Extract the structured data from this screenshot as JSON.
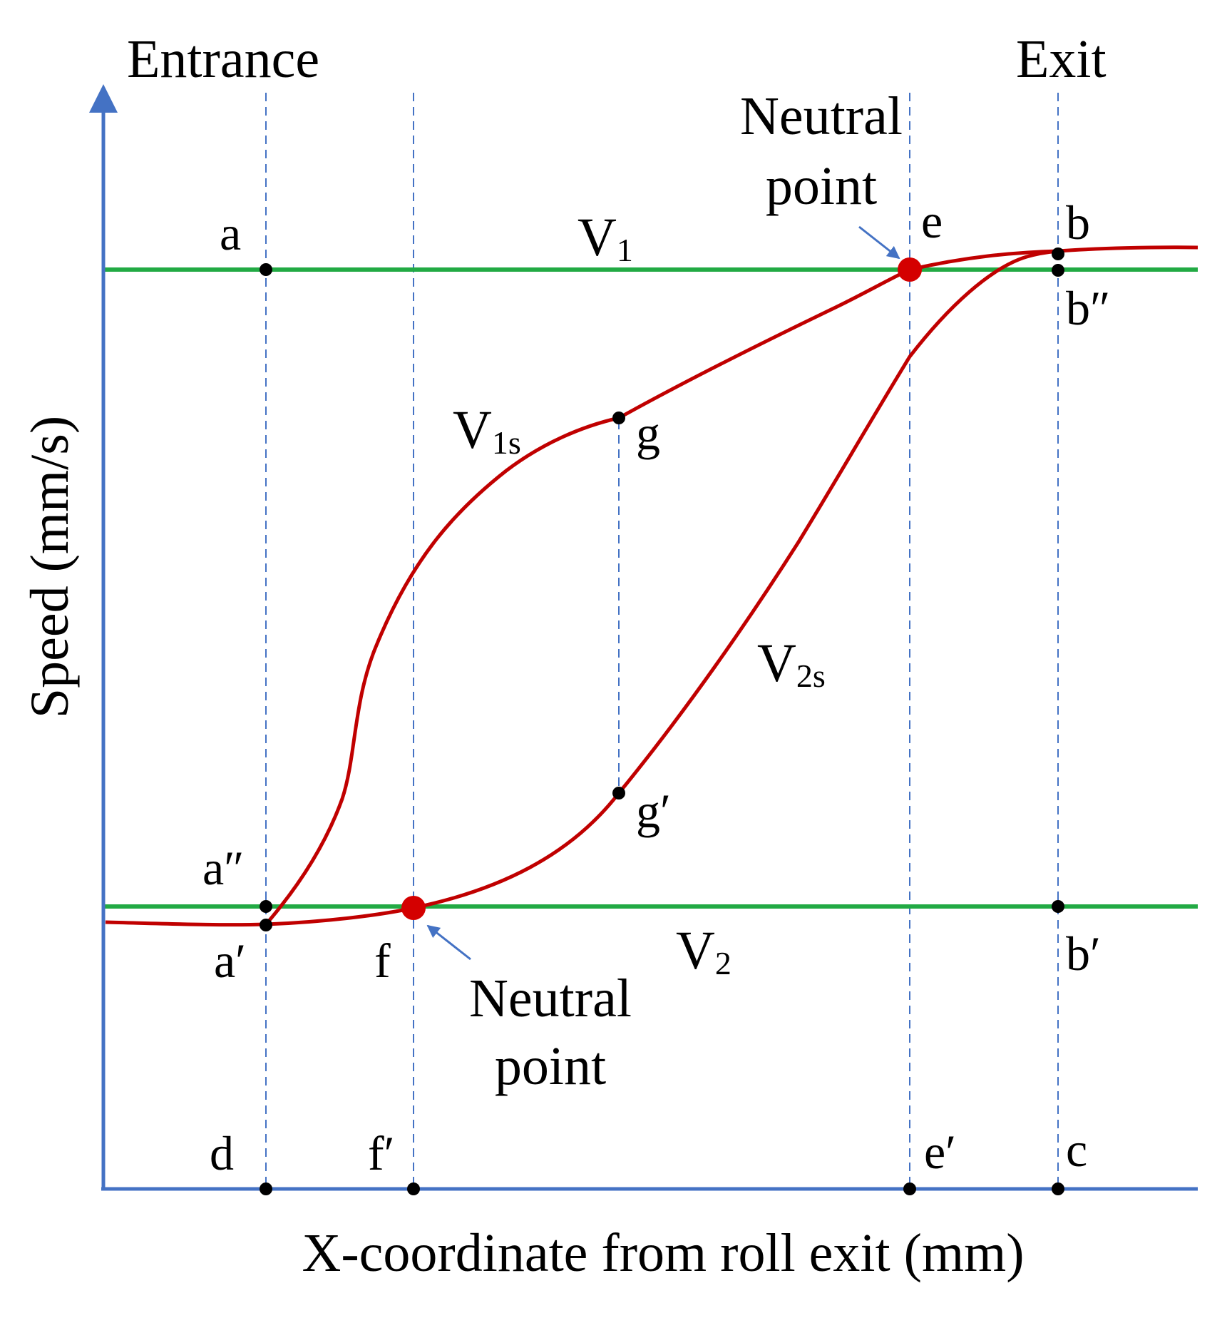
{
  "title_left": "Entrance",
  "title_right": "Exit",
  "axis": {
    "y_label": "Speed (mm/s)",
    "x_label": "X-coordinate from roll exit (mm)"
  },
  "colors": {
    "axis": "#4472C4",
    "reference_line": "#22AA44",
    "curve": "#C00000",
    "guide": "#4472C4",
    "neutral_marker": "#D40000"
  },
  "annotations": {
    "neutral_top": {
      "line1": "Neutral",
      "line2": "point"
    },
    "neutral_bottom": {
      "line1": "Neutral",
      "line2": "point"
    }
  },
  "curve_labels": {
    "v1": {
      "main": "V",
      "sub": "1"
    },
    "v2": {
      "main": "V",
      "sub": "2"
    },
    "v1s": {
      "main": "V",
      "sub": "1s"
    },
    "v2s": {
      "main": "V",
      "sub": "2s"
    }
  },
  "points": {
    "a": "a",
    "a_double": "a″",
    "a_prime": "a′",
    "b": "b",
    "b_double": "b″",
    "b_prime": "b′",
    "c": "c",
    "d": "d",
    "e": "e",
    "e_prime": "e′",
    "f": "f",
    "f_prime": "f′",
    "g": "g",
    "g_prime": "g′"
  }
}
